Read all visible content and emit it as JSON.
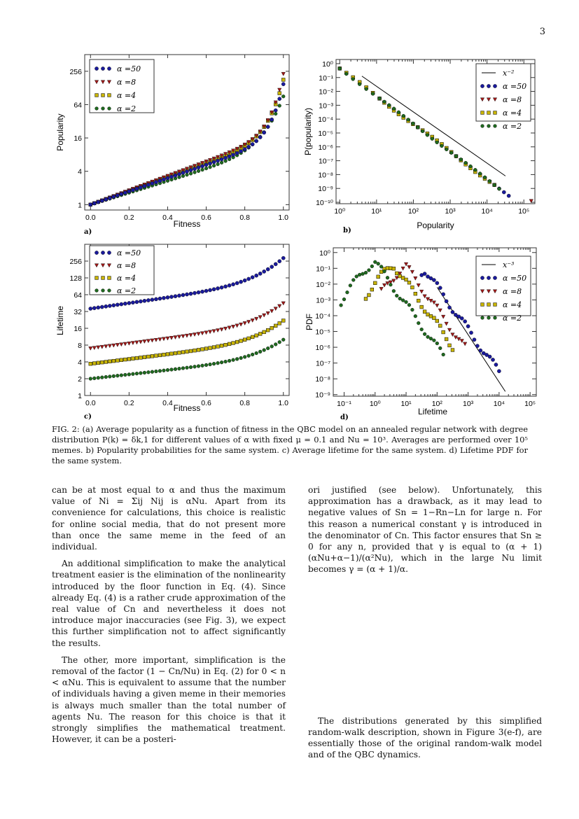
{
  "page_number": "3",
  "panels": {
    "a": {
      "label": "a)",
      "xlabel": "Fitness",
      "ylabel": "Popularity"
    },
    "b": {
      "label": "b)",
      "xlabel": "Popularity",
      "ylabel": "P(popularity)"
    },
    "c": {
      "label": "c)",
      "xlabel": "Fitness",
      "ylabel": "Lifetime"
    },
    "d": {
      "label": "d)",
      "xlabel": "Lifetime",
      "ylabel": "PDF"
    }
  },
  "legend": {
    "a50": "α =50",
    "a8": "α =8",
    "a4": "α =4",
    "a2": "α =2",
    "x2": "x⁻²",
    "x3": "x⁻³"
  },
  "colors": {
    "a50": "#1a1a9c",
    "a8": "#a01818",
    "a4": "#c8b400",
    "a2": "#1f6a1f"
  },
  "chart_data": [
    {
      "type": "scatter",
      "panel": "a",
      "xlabel": "Fitness",
      "ylabel": "Popularity",
      "yscale": "log2",
      "xlim": [
        -0.03,
        1.03
      ],
      "ylim": [
        0.8,
        512
      ],
      "xticks": [
        "0.0",
        "0.2",
        "0.4",
        "0.6",
        "0.8",
        "1.0"
      ],
      "yticks": [
        "1",
        "4",
        "16",
        "64",
        "256"
      ],
      "series": [
        {
          "name": "α =50",
          "y0": 1.0,
          "y_end": 150
        },
        {
          "name": "α =8",
          "y0": 1.0,
          "y_end": 230
        },
        {
          "name": "α =4",
          "y0": 1.0,
          "y_end": 180
        },
        {
          "name": "α =2",
          "y0": 1.0,
          "y_end": 90
        }
      ]
    },
    {
      "type": "scatter",
      "panel": "b",
      "xlabel": "Popularity",
      "ylabel": "P(popularity)",
      "scale": "log-log",
      "xlim": [
        1,
        200000
      ],
      "ylim": [
        1e-10,
        1
      ],
      "xticks": [
        "10⁰",
        "10¹",
        "10²",
        "10³",
        "10⁴",
        "10⁵"
      ],
      "yticks": [
        "10⁰",
        "10⁻¹",
        "10⁻²",
        "10⁻³",
        "10⁻⁴",
        "10⁻⁵",
        "10⁻⁶",
        "10⁻⁷",
        "10⁻⁸",
        "10⁻⁹",
        "10⁻¹⁰"
      ],
      "reference_line": {
        "label": "x⁻²",
        "x": [
          4,
          30000
        ]
      }
    },
    {
      "type": "scatter",
      "panel": "c",
      "xlabel": "Fitness",
      "ylabel": "Lifetime",
      "yscale": "log2",
      "xlim": [
        -0.03,
        1.03
      ],
      "ylim": [
        1,
        512
      ],
      "xticks": [
        "0.0",
        "0.2",
        "0.4",
        "0.6",
        "0.8",
        "1.0"
      ],
      "yticks": [
        "1",
        "2",
        "4",
        "8",
        "16",
        "32",
        "64",
        "128",
        "256"
      ],
      "series": [
        {
          "name": "α =50",
          "y0": 36,
          "y_end": 290
        },
        {
          "name": "α =8",
          "y0": 7,
          "y_end": 45
        },
        {
          "name": "α =4",
          "y0": 3.7,
          "y_end": 22
        },
        {
          "name": "α =2",
          "y0": 2,
          "y_end": 10
        }
      ]
    },
    {
      "type": "scatter",
      "panel": "d",
      "xlabel": "Lifetime",
      "ylabel": "PDF",
      "scale": "log-log",
      "xlim": [
        0.05,
        100000
      ],
      "ylim": [
        1e-09,
        1
      ],
      "xticks": [
        "10⁻¹",
        "10⁰",
        "10¹",
        "10²",
        "10³",
        "10⁴",
        "10⁵"
      ],
      "yticks": [
        "10⁰",
        "10⁻¹",
        "10⁻²",
        "10⁻³",
        "10⁻⁴",
        "10⁻⁵",
        "10⁻⁶",
        "10⁻⁷",
        "10⁻⁸",
        "10⁻⁹"
      ],
      "reference_line": {
        "label": "x⁻³",
        "x": [
          100,
          15000
        ]
      }
    }
  ],
  "caption": "FIG. 2: (a) Average popularity as a function of fitness in the QBC model on an annealed regular network with degree distribution P(k) = δk,1 for different values of α with fixed μ = 0.1 and Nu = 10³. Averages are performed over 10⁵ memes. b) Popularity probabilities for the same system. c) Average lifetime for the same system. d) Lifetime PDF for the same system.",
  "left_column": [
    "can be at most equal to α and thus the maximum value of Ni = Σij Nij is αNu. Apart from its convenience for calculations, this choice is realistic for online social media, that do not present more than once the same meme in the feed of an individual.",
    "An additional simplification to make the analytical treatment easier is the elimination of the nonlinearity introduced by the floor function in Eq. (4). Since already Eq. (4) is a rather crude approximation of the real value of Cn and nevertheless it does not introduce major inaccuracies (see Fig. 3), we expect this further simplification not to affect significantly the results.",
    "The other, more important, simplification is the removal of the factor (1 − Cn/Nu) in Eq. (2) for 0 < n < αNu. This is equivalent to assume that the number of individuals having a given meme in their memories is always much smaller than the total number of agents Nu. The reason for this choice is that it strongly simplifies the mathematical treatment. However, it can be a posteri-"
  ],
  "right_column": [
    "ori justified (see below). Unfortunately, this approximation has a drawback, as it may lead to negative values of Sn = 1−Rn−Ln for large n. For this reason a numerical constant γ is introduced in the denominator of Cn. This factor ensures that Sn ≥ 0 for any n, provided that γ is equal to (α + 1) (αNu+α−1)/(α²Nu), which in the large Nu limit becomes γ = (α + 1)/α.",
    "The distributions generated by this simplified random-walk description, shown in Figure 3(e-f), are essentially those of the original random-walk model and of the QBC dynamics."
  ]
}
